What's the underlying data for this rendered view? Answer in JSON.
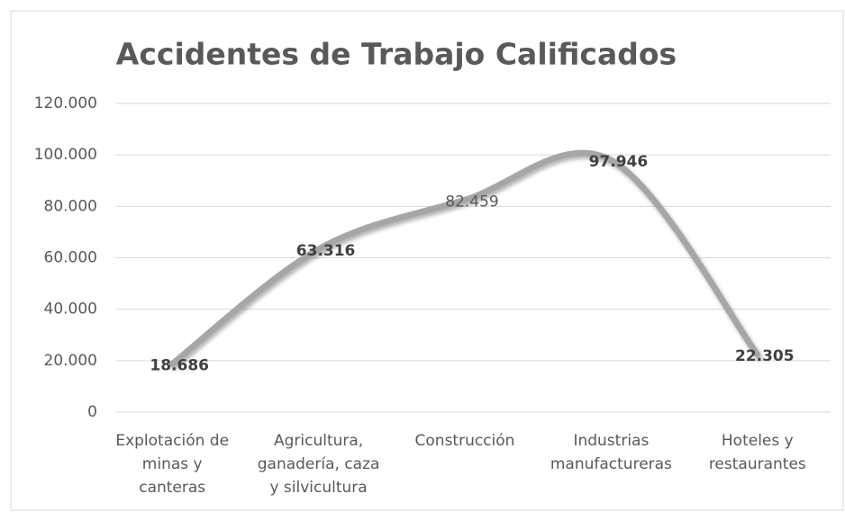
{
  "chart_data": {
    "type": "line",
    "title": "Accidentes de Trabajo Calificados",
    "categories": [
      "Explotación de minas y canteras",
      "Agricultura, ganadería, caza y silvicultura",
      "Construcción",
      "Industrias manufactureras",
      "Hoteles y restaurantes"
    ],
    "values": [
      18686,
      63316,
      82459,
      97946,
      22305
    ],
    "value_labels": [
      "18.686",
      "63.316",
      "82.459",
      "97.946",
      "22.305"
    ],
    "color": "#a6a6a6",
    "smooth": true,
    "ylim": [
      0,
      120000
    ],
    "yticks": [
      0,
      {
        "value": 20000,
        "label": "20.000"
      },
      {
        "value": 40000,
        "label": "40.000"
      },
      {
        "value": 60000,
        "label": "60.000"
      },
      {
        "value": 80000,
        "label": "80.000"
      },
      {
        "value": 100000,
        "label": "100.000"
      },
      {
        "value": 120000,
        "label": "120.000"
      }
    ],
    "grid": true
  }
}
